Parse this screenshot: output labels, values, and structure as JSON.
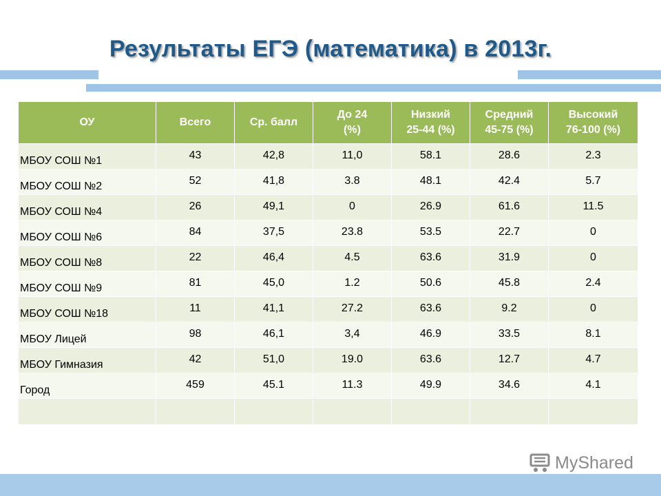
{
  "title": "Результаты ЕГЭ (математика) в 2013г.",
  "table": {
    "headers": [
      "ОУ",
      "Всего",
      "Ср. балл",
      "До 24\n(%)",
      "Низкий\n25-44 (%)",
      "Средний\n45-75 (%)",
      "Высокий\n76-100 (%)"
    ],
    "rows": [
      [
        "МБОУ СОШ №1",
        "43",
        "42,8",
        "11,0",
        "58.1",
        "28.6",
        "2.3"
      ],
      [
        "МБОУ СОШ №2",
        "52",
        "41,8",
        "3.8",
        "48.1",
        "42.4",
        "5.7"
      ],
      [
        "МБОУ СОШ №4",
        "26",
        "49,1",
        "0",
        "26.9",
        "61.6",
        "11.5"
      ],
      [
        "МБОУ СОШ №6",
        "84",
        "37,5",
        "23.8",
        "53.5",
        "22.7",
        "0"
      ],
      [
        "МБОУ СОШ №8",
        "22",
        "46,4",
        "4.5",
        "63.6",
        "31.9",
        "0"
      ],
      [
        "МБОУ СОШ №9",
        "81",
        "45,0",
        "1.2",
        "50.6",
        "45.8",
        "2.4"
      ],
      [
        "МБОУ СОШ №18",
        "11",
        "41,1",
        "27.2",
        "63.6",
        "9.2",
        "0"
      ],
      [
        "МБОУ Лицей",
        "98",
        "46,1",
        "3,4",
        "46.9",
        "33.5",
        "8.1"
      ],
      [
        "МБОУ Гимназия",
        "42",
        "51,0",
        "19.0",
        "63.6",
        "12.7",
        "4.7"
      ],
      [
        "Город",
        "459",
        "45.1",
        "11.3",
        "49.9",
        "34.6",
        "4.1"
      ]
    ]
  },
  "watermark": {
    "text": "MyShared",
    "icon": "cart-icon"
  },
  "colors": {
    "title": "#1f5a8a",
    "header_bg": "#9bbb59",
    "row_odd": "#ebf0de",
    "row_even": "#f5f8ef",
    "accent_bar": "#9fc4e6"
  }
}
